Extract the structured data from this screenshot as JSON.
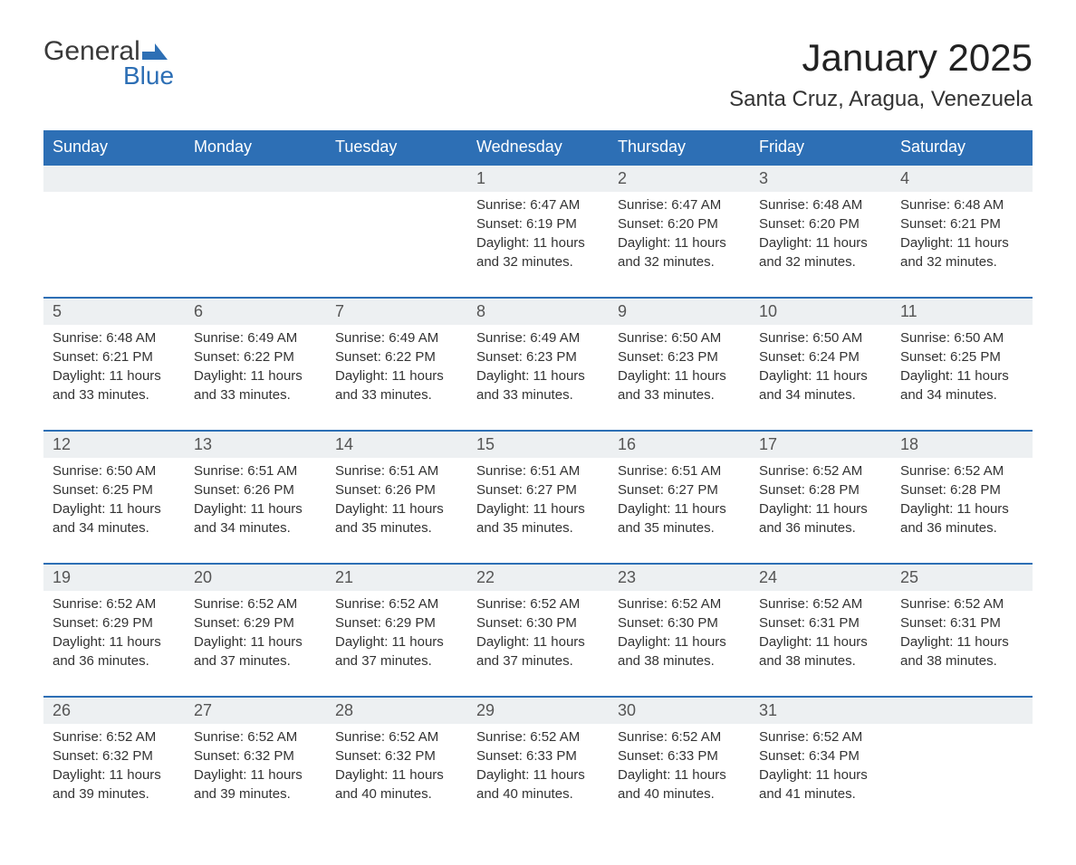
{
  "logo": {
    "text_general": "General",
    "text_blue": "Blue",
    "icon_color": "#2d6fb5"
  },
  "title": "January 2025",
  "location": "Santa Cruz, Aragua, Venezuela",
  "colors": {
    "header_bg": "#2d6fb5",
    "header_text": "#ffffff",
    "day_number_bg": "#edf0f2",
    "day_border": "#2d6fb5",
    "body_text": "#333333",
    "page_bg": "#ffffff"
  },
  "typography": {
    "title_fontsize": 42,
    "location_fontsize": 24,
    "header_fontsize": 18,
    "daynum_fontsize": 18,
    "content_fontsize": 15
  },
  "day_headers": [
    "Sunday",
    "Monday",
    "Tuesday",
    "Wednesday",
    "Thursday",
    "Friday",
    "Saturday"
  ],
  "weeks": [
    [
      null,
      null,
      null,
      {
        "n": "1",
        "sunrise": "Sunrise: 6:47 AM",
        "sunset": "Sunset: 6:19 PM",
        "daylight": "Daylight: 11 hours and 32 minutes."
      },
      {
        "n": "2",
        "sunrise": "Sunrise: 6:47 AM",
        "sunset": "Sunset: 6:20 PM",
        "daylight": "Daylight: 11 hours and 32 minutes."
      },
      {
        "n": "3",
        "sunrise": "Sunrise: 6:48 AM",
        "sunset": "Sunset: 6:20 PM",
        "daylight": "Daylight: 11 hours and 32 minutes."
      },
      {
        "n": "4",
        "sunrise": "Sunrise: 6:48 AM",
        "sunset": "Sunset: 6:21 PM",
        "daylight": "Daylight: 11 hours and 32 minutes."
      }
    ],
    [
      {
        "n": "5",
        "sunrise": "Sunrise: 6:48 AM",
        "sunset": "Sunset: 6:21 PM",
        "daylight": "Daylight: 11 hours and 33 minutes."
      },
      {
        "n": "6",
        "sunrise": "Sunrise: 6:49 AM",
        "sunset": "Sunset: 6:22 PM",
        "daylight": "Daylight: 11 hours and 33 minutes."
      },
      {
        "n": "7",
        "sunrise": "Sunrise: 6:49 AM",
        "sunset": "Sunset: 6:22 PM",
        "daylight": "Daylight: 11 hours and 33 minutes."
      },
      {
        "n": "8",
        "sunrise": "Sunrise: 6:49 AM",
        "sunset": "Sunset: 6:23 PM",
        "daylight": "Daylight: 11 hours and 33 minutes."
      },
      {
        "n": "9",
        "sunrise": "Sunrise: 6:50 AM",
        "sunset": "Sunset: 6:23 PM",
        "daylight": "Daylight: 11 hours and 33 minutes."
      },
      {
        "n": "10",
        "sunrise": "Sunrise: 6:50 AM",
        "sunset": "Sunset: 6:24 PM",
        "daylight": "Daylight: 11 hours and 34 minutes."
      },
      {
        "n": "11",
        "sunrise": "Sunrise: 6:50 AM",
        "sunset": "Sunset: 6:25 PM",
        "daylight": "Daylight: 11 hours and 34 minutes."
      }
    ],
    [
      {
        "n": "12",
        "sunrise": "Sunrise: 6:50 AM",
        "sunset": "Sunset: 6:25 PM",
        "daylight": "Daylight: 11 hours and 34 minutes."
      },
      {
        "n": "13",
        "sunrise": "Sunrise: 6:51 AM",
        "sunset": "Sunset: 6:26 PM",
        "daylight": "Daylight: 11 hours and 34 minutes."
      },
      {
        "n": "14",
        "sunrise": "Sunrise: 6:51 AM",
        "sunset": "Sunset: 6:26 PM",
        "daylight": "Daylight: 11 hours and 35 minutes."
      },
      {
        "n": "15",
        "sunrise": "Sunrise: 6:51 AM",
        "sunset": "Sunset: 6:27 PM",
        "daylight": "Daylight: 11 hours and 35 minutes."
      },
      {
        "n": "16",
        "sunrise": "Sunrise: 6:51 AM",
        "sunset": "Sunset: 6:27 PM",
        "daylight": "Daylight: 11 hours and 35 minutes."
      },
      {
        "n": "17",
        "sunrise": "Sunrise: 6:52 AM",
        "sunset": "Sunset: 6:28 PM",
        "daylight": "Daylight: 11 hours and 36 minutes."
      },
      {
        "n": "18",
        "sunrise": "Sunrise: 6:52 AM",
        "sunset": "Sunset: 6:28 PM",
        "daylight": "Daylight: 11 hours and 36 minutes."
      }
    ],
    [
      {
        "n": "19",
        "sunrise": "Sunrise: 6:52 AM",
        "sunset": "Sunset: 6:29 PM",
        "daylight": "Daylight: 11 hours and 36 minutes."
      },
      {
        "n": "20",
        "sunrise": "Sunrise: 6:52 AM",
        "sunset": "Sunset: 6:29 PM",
        "daylight": "Daylight: 11 hours and 37 minutes."
      },
      {
        "n": "21",
        "sunrise": "Sunrise: 6:52 AM",
        "sunset": "Sunset: 6:29 PM",
        "daylight": "Daylight: 11 hours and 37 minutes."
      },
      {
        "n": "22",
        "sunrise": "Sunrise: 6:52 AM",
        "sunset": "Sunset: 6:30 PM",
        "daylight": "Daylight: 11 hours and 37 minutes."
      },
      {
        "n": "23",
        "sunrise": "Sunrise: 6:52 AM",
        "sunset": "Sunset: 6:30 PM",
        "daylight": "Daylight: 11 hours and 38 minutes."
      },
      {
        "n": "24",
        "sunrise": "Sunrise: 6:52 AM",
        "sunset": "Sunset: 6:31 PM",
        "daylight": "Daylight: 11 hours and 38 minutes."
      },
      {
        "n": "25",
        "sunrise": "Sunrise: 6:52 AM",
        "sunset": "Sunset: 6:31 PM",
        "daylight": "Daylight: 11 hours and 38 minutes."
      }
    ],
    [
      {
        "n": "26",
        "sunrise": "Sunrise: 6:52 AM",
        "sunset": "Sunset: 6:32 PM",
        "daylight": "Daylight: 11 hours and 39 minutes."
      },
      {
        "n": "27",
        "sunrise": "Sunrise: 6:52 AM",
        "sunset": "Sunset: 6:32 PM",
        "daylight": "Daylight: 11 hours and 39 minutes."
      },
      {
        "n": "28",
        "sunrise": "Sunrise: 6:52 AM",
        "sunset": "Sunset: 6:32 PM",
        "daylight": "Daylight: 11 hours and 40 minutes."
      },
      {
        "n": "29",
        "sunrise": "Sunrise: 6:52 AM",
        "sunset": "Sunset: 6:33 PM",
        "daylight": "Daylight: 11 hours and 40 minutes."
      },
      {
        "n": "30",
        "sunrise": "Sunrise: 6:52 AM",
        "sunset": "Sunset: 6:33 PM",
        "daylight": "Daylight: 11 hours and 40 minutes."
      },
      {
        "n": "31",
        "sunrise": "Sunrise: 6:52 AM",
        "sunset": "Sunset: 6:34 PM",
        "daylight": "Daylight: 11 hours and 41 minutes."
      },
      null
    ]
  ]
}
